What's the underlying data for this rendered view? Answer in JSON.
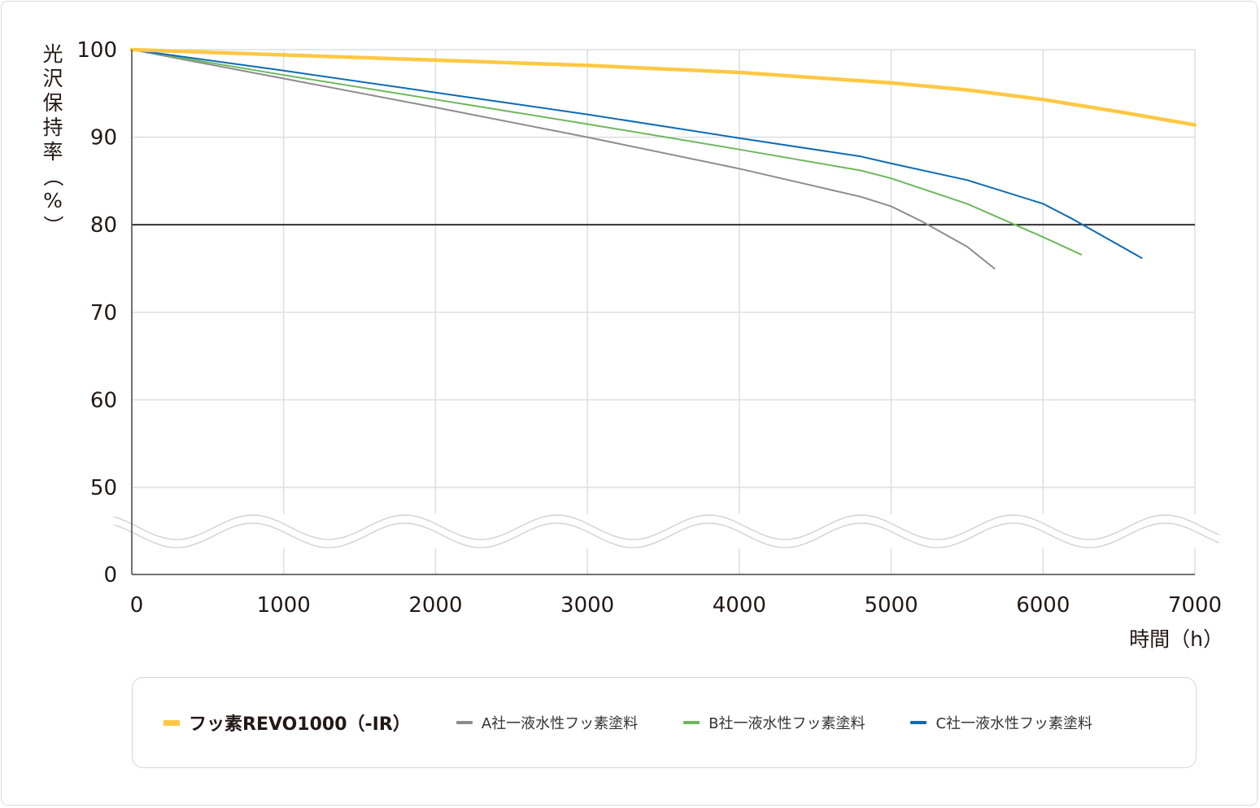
{
  "chart_data": {
    "type": "line",
    "title": "",
    "xlabel": "時間（h）",
    "ylabel": "光沢保持率（%）",
    "xlim": [
      0,
      7000
    ],
    "ylim": [
      0,
      100
    ],
    "axis_break": [
      40,
      50
    ],
    "x_ticks": [
      0,
      1000,
      2000,
      3000,
      4000,
      5000,
      6000,
      7000
    ],
    "x_tick_labels": [
      "0",
      "1000",
      "2000",
      "3000",
      "4000",
      "5000",
      "6000",
      "7000"
    ],
    "y_ticks": [
      0,
      50,
      60,
      70,
      80,
      90,
      100
    ],
    "y_tick_labels": [
      "0",
      "50",
      "60",
      "70",
      "80",
      "90",
      "100"
    ],
    "reference_line": 80,
    "grid": true,
    "legend_position": "bottom",
    "series": [
      {
        "name": "フッ素REVO1000（-IR）",
        "color": "#FFC844",
        "primary": true,
        "x": [
          0,
          1000,
          2000,
          3000,
          4000,
          5000,
          5500,
          6000,
          6500,
          7000
        ],
        "y": [
          100,
          99.4,
          98.8,
          98.2,
          97.4,
          96.2,
          95.4,
          94.3,
          92.9,
          91.4
        ]
      },
      {
        "name": "A社一液水性フッ素塗料",
        "color": "#8C8C8C",
        "primary": false,
        "x": [
          0,
          1000,
          2000,
          3000,
          4000,
          4800,
          5000,
          5200,
          5500,
          5680
        ],
        "y": [
          100,
          96.7,
          93.4,
          90,
          86.4,
          83.2,
          82.1,
          80.4,
          77.5,
          75
        ]
      },
      {
        "name": "B社一液水性フッ素塗料",
        "color": "#6CB85C",
        "primary": false,
        "x": [
          0,
          1000,
          2000,
          3000,
          4000,
          4800,
          5000,
          5500,
          6000,
          6250
        ],
        "y": [
          100,
          97.1,
          94.3,
          91.5,
          88.6,
          86.2,
          85.3,
          82.4,
          78.6,
          76.6
        ]
      },
      {
        "name": "C社一液水性フッ素塗料",
        "color": "#0E6BB3",
        "primary": false,
        "x": [
          0,
          1000,
          2000,
          3000,
          4000,
          4800,
          5000,
          5500,
          6000,
          6200,
          6650
        ],
        "y": [
          100,
          97.6,
          95.1,
          92.6,
          89.9,
          87.8,
          87,
          85.1,
          82.4,
          80.6,
          76.2
        ]
      }
    ]
  }
}
